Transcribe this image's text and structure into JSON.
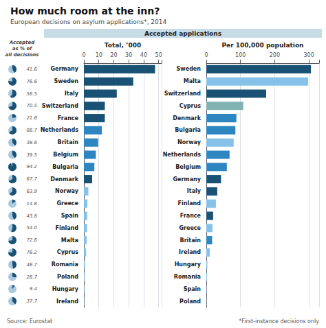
{
  "title": "How much room at the inn?",
  "subtitle": "European decisions on asylum applications*, 2014",
  "annotations": [
    "Accepted applications",
    "Source: Eurostat",
    "*First-instance decisions only"
  ],
  "chart_data": [
    {
      "type": "pie",
      "annotations": [
        "Accepted",
        "as % of",
        "all decisions"
      ],
      "categories": [
        "Germany",
        "Sweden",
        "Italy",
        "Switzerland",
        "France",
        "Netherlands",
        "Britain",
        "Belgium",
        "Bulgaria",
        "Denmark",
        "Norway",
        "Greece",
        "Spain",
        "Finland",
        "Malta",
        "Cyprus",
        "Romania",
        "Poland",
        "Hungary",
        "Ireland"
      ],
      "values": [
        41.6,
        76.6,
        58.5,
        70.5,
        21.6,
        66.7,
        38.6,
        39.5,
        94.2,
        67.7,
        63.9,
        14.8,
        43.8,
        54.0,
        72.6,
        76.2,
        46.7,
        26.7,
        9.4,
        37.7
      ],
      "value_labels": [
        "41.6",
        "76.6",
        "58.5",
        "70.5",
        "21.6",
        "66.7",
        "38.6",
        "39.5",
        "94.2",
        "67.7",
        "63.9",
        "14.8",
        "43.8",
        "54.0",
        "72.6",
        "76.2",
        "46.7",
        "26.7",
        "9.4",
        "37.7"
      ],
      "data_labels": true,
      "color": "#1a5276",
      "xlim": [
        0,
        100
      ]
    },
    {
      "type": "bar",
      "orientation": "horizontal",
      "title": "Total, ’000",
      "categories": [
        "Germany",
        "Sweden",
        "Italy",
        "Switzerland",
        "France",
        "Netherlands",
        "Britain",
        "Belgium",
        "Bulgaria",
        "Denmark",
        "Norway",
        "Greece",
        "Spain",
        "Finland",
        "Malta",
        "Cyprus",
        "Romania",
        "Poland",
        "Hungary",
        "Ireland"
      ],
      "values": [
        47.6,
        33.0,
        22.0,
        14.0,
        14.0,
        12.0,
        9.5,
        8.0,
        7.0,
        5.5,
        3.0,
        2.3,
        2.2,
        2.1,
        1.8,
        1.5,
        0.8,
        0.4,
        0.3,
        0.2
      ],
      "colors": [
        "#1a5276",
        "#1a5276",
        "#1a5276",
        "#1a5276",
        "#1a5276",
        "#2e86c1",
        "#2e86c1",
        "#2e86c1",
        "#2e86c1",
        "#1a5276",
        "#85c1e9",
        "#85c1e9",
        "#85c1e9",
        "#85c1e9",
        "#85c1e9",
        "#85c1e9",
        "#85c1e9",
        "#85c1e9",
        "#85c1e9",
        "#85c1e9"
      ],
      "xlim": [
        0,
        52
      ],
      "xticks": [
        0,
        10,
        20,
        30,
        40,
        50
      ],
      "grid": true
    },
    {
      "type": "bar",
      "orientation": "horizontal",
      "title": "Per 100,000 population",
      "categories": [
        "Sweden",
        "Malta",
        "Switzerland",
        "Cyprus",
        "Denmark",
        "Bulgaria",
        "Norway",
        "Netherlands",
        "Belgium",
        "Germany",
        "Italy",
        "Finland",
        "France",
        "Greece",
        "Britain",
        "Ireland",
        "Hungary",
        "Romania",
        "Spain",
        "Poland"
      ],
      "values": [
        306,
        298,
        175,
        108,
        88,
        85,
        80,
        68,
        60,
        43,
        32,
        28,
        20,
        18,
        17,
        10,
        3,
        2,
        1,
        0.5
      ],
      "colors": [
        "#1a5276",
        "#85c1e9",
        "#1a5276",
        "#7fb3b3",
        "#2e86c1",
        "#2e86c1",
        "#85c1e9",
        "#2e86c1",
        "#2e86c1",
        "#1a5276",
        "#1a5276",
        "#85c1e9",
        "#1a5276",
        "#85c1e9",
        "#2e86c1",
        "#85c1e9",
        "#85c1e9",
        "#85c1e9",
        "#85c1e9",
        "#85c1e9"
      ],
      "xlim": [
        0,
        330
      ],
      "xticks": [
        0,
        100,
        200,
        300
      ],
      "grid": true
    }
  ]
}
